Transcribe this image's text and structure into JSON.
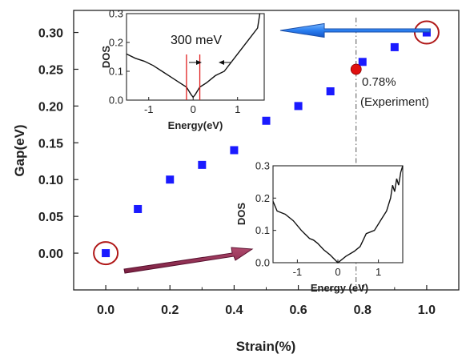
{
  "chart_data": {
    "type": "scatter",
    "xlabel": "Strain(%)",
    "ylabel": "Gap(eV)",
    "xlim": [
      -0.1,
      1.1
    ],
    "ylim": [
      -0.05,
      0.33
    ],
    "x_ticks": [
      "0.0",
      "0.2",
      "0.4",
      "0.6",
      "0.8",
      "1.0"
    ],
    "y_ticks": [
      "0.00",
      "0.05",
      "0.10",
      "0.15",
      "0.20",
      "0.25",
      "0.30"
    ],
    "series": [
      {
        "color": "#1a1aff",
        "marker": "square",
        "x": [
          0.0,
          0.1,
          0.2,
          0.3,
          0.4,
          0.5,
          0.6,
          0.7,
          0.8,
          0.9,
          1.0
        ],
        "y": [
          0.0,
          0.06,
          0.1,
          0.12,
          0.14,
          0.18,
          0.2,
          0.22,
          0.26,
          0.28,
          0.3
        ]
      },
      {
        "color": "#e01010",
        "marker": "circle",
        "x": [
          0.78
        ],
        "y": [
          0.25
        ]
      }
    ],
    "annotations": {
      "experiment_value": "0.78%",
      "experiment_label": "(Experiment)",
      "gap_width_label": "300 meV"
    },
    "reference_line_x": 0.78,
    "insets": [
      {
        "id": "top",
        "xlabel": "Energy(eV)",
        "ylabel": "DOS",
        "xlim": [
          -1.5,
          1.6
        ],
        "ylim": [
          0,
          0.3
        ],
        "x_ticks": [
          "-1",
          "0",
          "1"
        ],
        "y_ticks": [
          "0.0",
          "0.1",
          "0.2",
          "0.3"
        ],
        "gap_edges": [
          -0.15,
          0.15
        ],
        "curve": [
          [
            -1.5,
            0.16
          ],
          [
            -1.3,
            0.145
          ],
          [
            -1.1,
            0.135
          ],
          [
            -0.9,
            0.12
          ],
          [
            -0.7,
            0.1
          ],
          [
            -0.5,
            0.08
          ],
          [
            -0.3,
            0.06
          ],
          [
            -0.15,
            0.045
          ],
          [
            -0.05,
            0.02
          ],
          [
            0.0,
            0.01
          ],
          [
            0.05,
            0.02
          ],
          [
            0.15,
            0.045
          ],
          [
            0.3,
            0.06
          ],
          [
            0.5,
            0.085
          ],
          [
            0.7,
            0.1
          ],
          [
            0.9,
            0.14
          ],
          [
            1.1,
            0.18
          ],
          [
            1.3,
            0.22
          ],
          [
            1.45,
            0.25
          ],
          [
            1.5,
            0.3
          ]
        ]
      },
      {
        "id": "bottom",
        "xlabel": "Energy (eV)",
        "ylabel": "DOS",
        "xlim": [
          -1.6,
          1.6
        ],
        "ylim": [
          0,
          0.3
        ],
        "x_ticks": [
          "-1",
          "0",
          "1"
        ],
        "y_ticks": [
          "0.0",
          "0.1",
          "0.2",
          "0.3"
        ],
        "curve": [
          [
            -1.6,
            0.19
          ],
          [
            -1.5,
            0.16
          ],
          [
            -1.3,
            0.15
          ],
          [
            -1.1,
            0.13
          ],
          [
            -0.9,
            0.1
          ],
          [
            -0.7,
            0.075
          ],
          [
            -0.6,
            0.07
          ],
          [
            -0.5,
            0.06
          ],
          [
            -0.35,
            0.04
          ],
          [
            -0.2,
            0.025
          ],
          [
            0.0,
            0.0
          ],
          [
            0.2,
            0.02
          ],
          [
            0.4,
            0.035
          ],
          [
            0.55,
            0.05
          ],
          [
            0.7,
            0.09
          ],
          [
            0.9,
            0.1
          ],
          [
            1.1,
            0.14
          ],
          [
            1.2,
            0.16
          ],
          [
            1.3,
            0.2
          ],
          [
            1.35,
            0.24
          ],
          [
            1.4,
            0.22
          ],
          [
            1.45,
            0.26
          ],
          [
            1.5,
            0.24
          ],
          [
            1.55,
            0.28
          ],
          [
            1.6,
            0.3
          ]
        ]
      }
    ]
  }
}
